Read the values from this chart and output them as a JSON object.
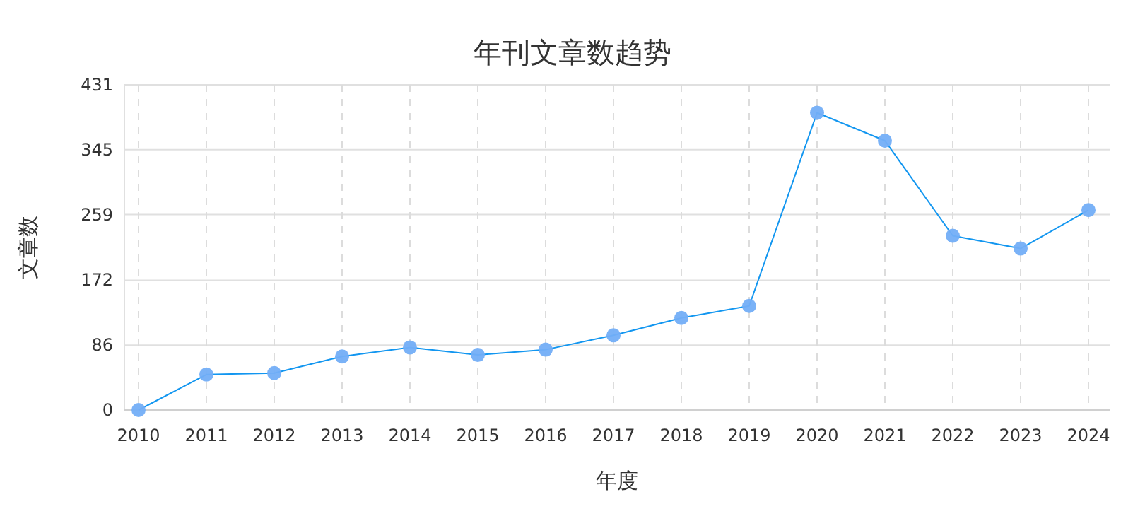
{
  "chart_data": {
    "type": "line",
    "title": "年刊文章数趋势",
    "xlabel": "年度",
    "ylabel": "文章数",
    "categories": [
      "2010",
      "2011",
      "2012",
      "2013",
      "2014",
      "2015",
      "2016",
      "2017",
      "2018",
      "2019",
      "2020",
      "2021",
      "2022",
      "2023",
      "2024"
    ],
    "series": [
      {
        "color": "#1296f0",
        "values": [
          0,
          47,
          49,
          71,
          83,
          73,
          80,
          99,
          122,
          138,
          394,
          357,
          231,
          214,
          265
        ]
      }
    ],
    "ylim": [
      0,
      431
    ],
    "yticks": [
      0,
      86,
      172,
      259,
      345,
      431
    ],
    "grid": true,
    "marker": "circle",
    "line_style": "solid"
  }
}
